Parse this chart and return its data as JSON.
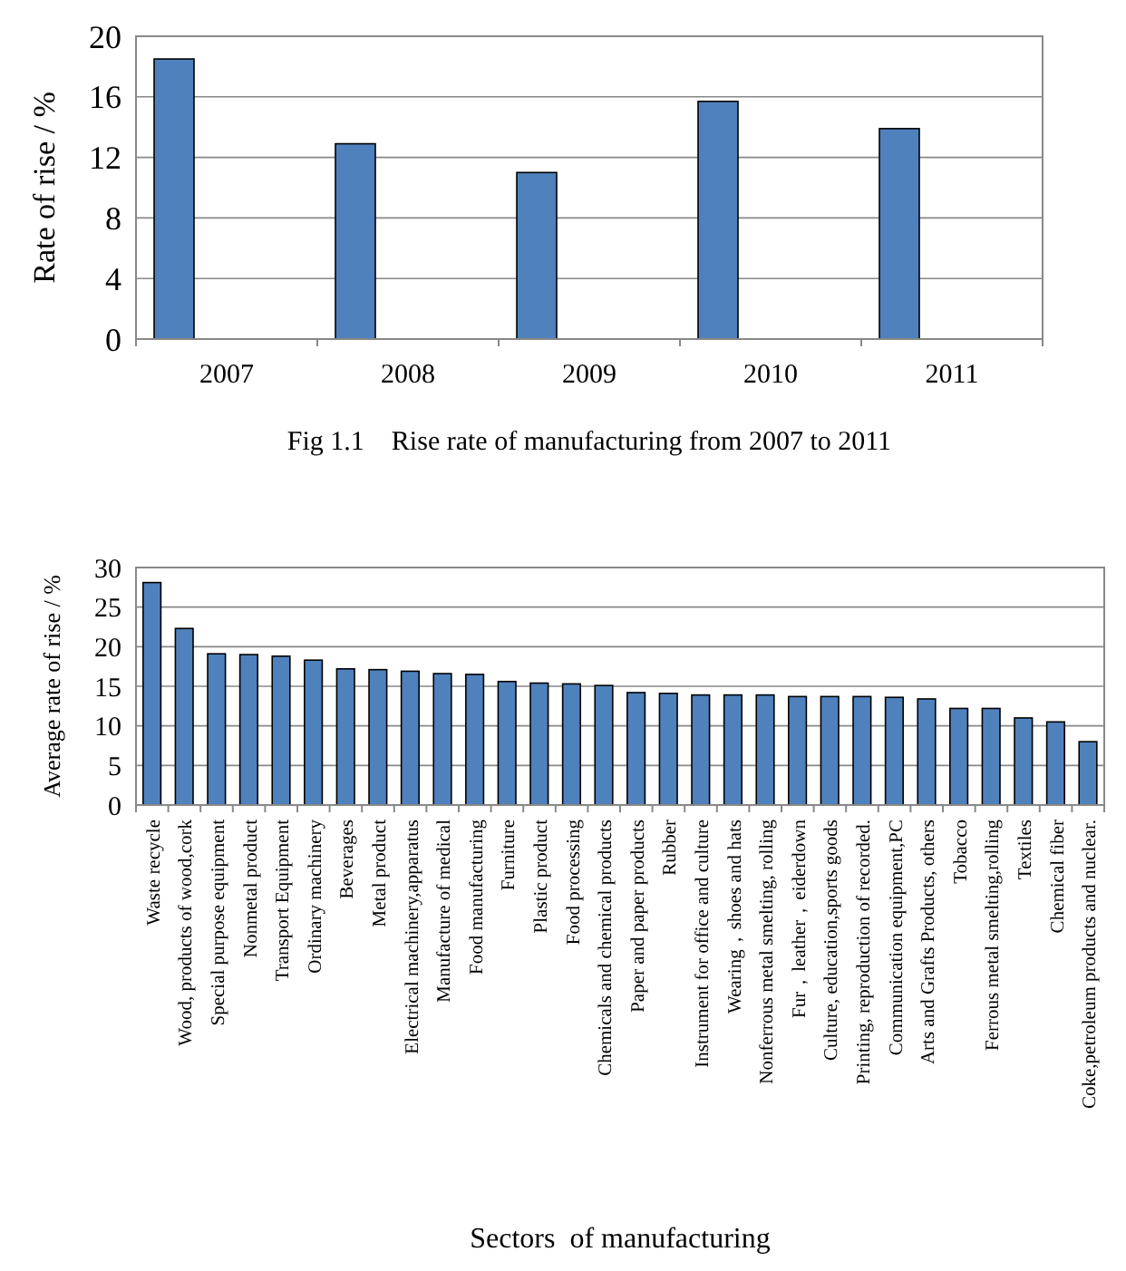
{
  "chart_data": [
    {
      "type": "bar",
      "title": "Fig 1.1    Rise rate of manufacturing from 2007 to 2011",
      "ylabel": "Rate of rise / %",
      "categories": [
        "2007",
        "2008",
        "2009",
        "2010",
        "2011"
      ],
      "values": [
        18.5,
        12.9,
        11.0,
        15.7,
        13.9
      ],
      "color": "#4f81bd",
      "ylim": [
        0,
        20
      ],
      "yticks": [
        0,
        4,
        8,
        12,
        16,
        20
      ],
      "grid": "y"
    },
    {
      "type": "bar",
      "xlabel": "Sectors  of manufacturing",
      "ylabel": "Average rate of rise / %",
      "categories": [
        "Waste recycle",
        "Wood, products of wood,cork",
        "Special purpose equipment",
        "Nonmetal product",
        "Transport Equipment",
        "Ordinary machinery",
        "Beverages",
        "Metal product",
        "Electrical machinery,apparatus",
        "Manufacture of medical",
        "Food manufacturing",
        "Furniture",
        "Plastic product",
        "Food processing",
        "Chemicals and chemical products",
        "Paper and paper products",
        "Rubber",
        "Instrument for office and culture",
        "Wearing，shoes and hats",
        "Nonferrous metal smelting, rolling",
        "Fur，leather，eiderdown",
        "Culture, education,sports goods",
        "Printing, reproduction of recorded.",
        "Communication equipment,PC",
        "Arts and Grafts Products, others",
        "Tobacco",
        "Ferrous metal smelting,rolling",
        "Textiles",
        "Chemical fiber",
        "Coke,petroleum products and nuclear."
      ],
      "values": [
        28.1,
        22.3,
        19.1,
        19.0,
        18.8,
        18.3,
        17.2,
        17.1,
        16.9,
        16.6,
        16.5,
        15.6,
        15.4,
        15.3,
        15.1,
        14.2,
        14.1,
        13.9,
        13.9,
        13.9,
        13.7,
        13.7,
        13.7,
        13.6,
        13.4,
        12.2,
        12.2,
        11.0,
        10.5,
        8.0
      ],
      "color": "#4f81bd",
      "ylim": [
        0,
        30
      ],
      "yticks": [
        0,
        5,
        10,
        15,
        20,
        25,
        30
      ],
      "grid": "y"
    }
  ]
}
